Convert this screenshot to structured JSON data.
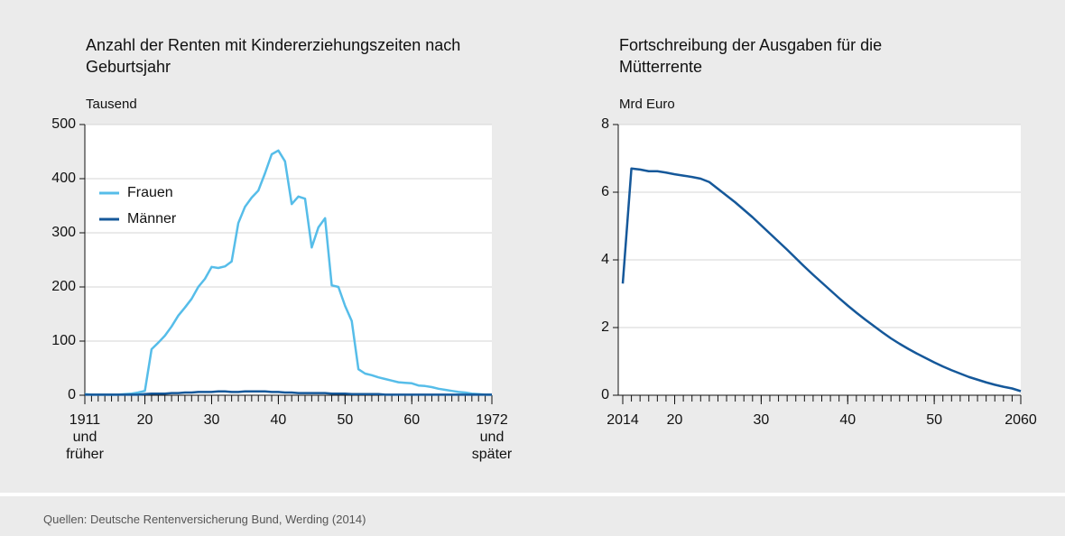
{
  "chart_data": [
    {
      "type": "line",
      "title": "Anzahl der Renten mit Kindererziehungszeiten nach Geburtsjahr",
      "y_label": "Tausend",
      "x": [
        1911,
        1912,
        1913,
        1914,
        1915,
        1916,
        1917,
        1918,
        1919,
        1920,
        1921,
        1922,
        1923,
        1924,
        1925,
        1926,
        1927,
        1928,
        1929,
        1930,
        1931,
        1932,
        1933,
        1934,
        1935,
        1936,
        1937,
        1938,
        1939,
        1940,
        1941,
        1942,
        1943,
        1944,
        1945,
        1946,
        1947,
        1948,
        1949,
        1950,
        1951,
        1952,
        1953,
        1954,
        1955,
        1956,
        1957,
        1958,
        1959,
        1960,
        1961,
        1962,
        1963,
        1964,
        1965,
        1966,
        1967,
        1968,
        1969,
        1970,
        1971,
        1972
      ],
      "series": [
        {
          "name": "Frauen",
          "color": "#56bde9",
          "values": [
            2,
            1,
            1,
            1,
            1,
            1,
            2,
            3,
            5,
            8,
            85,
            97,
            110,
            127,
            147,
            162,
            178,
            200,
            215,
            237,
            235,
            238,
            247,
            318,
            348,
            365,
            378,
            410,
            445,
            452,
            432,
            353,
            367,
            363,
            273,
            310,
            327,
            203,
            200,
            165,
            137,
            48,
            40,
            37,
            33,
            30,
            27,
            24,
            23,
            22,
            18,
            17,
            15,
            12,
            10,
            8,
            6,
            5,
            3,
            2,
            1,
            1
          ]
        },
        {
          "name": "Männer",
          "color": "#15589a",
          "values": [
            1,
            1,
            1,
            1,
            1,
            1,
            1,
            1,
            1,
            2,
            3,
            3,
            3,
            4,
            4,
            5,
            5,
            6,
            6,
            6,
            7,
            7,
            6,
            6,
            7,
            7,
            7,
            7,
            6,
            6,
            5,
            5,
            4,
            4,
            4,
            4,
            4,
            3,
            3,
            3,
            2,
            2,
            2,
            2,
            2,
            1,
            1,
            1,
            1,
            1,
            1,
            1,
            1,
            1,
            1,
            1,
            1,
            1,
            1,
            1,
            1,
            1
          ]
        }
      ],
      "xlim": [
        1911,
        1972
      ],
      "xticks": [
        {
          "value": 1911,
          "label": "1911\nund\nfrüher"
        },
        {
          "value": 1920,
          "label": "20"
        },
        {
          "value": 1930,
          "label": "30"
        },
        {
          "value": 1940,
          "label": "40"
        },
        {
          "value": 1950,
          "label": "50"
        },
        {
          "value": 1960,
          "label": "60"
        },
        {
          "value": 1972,
          "label": "1972\nund\nspäter"
        }
      ],
      "ylim": [
        0,
        500
      ],
      "yticks": [
        0,
        100,
        200,
        300,
        400,
        500
      ],
      "grid": true,
      "legend": "upper left"
    },
    {
      "type": "line",
      "title": "Fortschreibung der Ausgaben für die Mütterrente",
      "y_label": "Mrd Euro",
      "x": [
        2014,
        2015,
        2016,
        2017,
        2018,
        2019,
        2020,
        2021,
        2022,
        2023,
        2024,
        2025,
        2026,
        2027,
        2028,
        2029,
        2030,
        2031,
        2032,
        2033,
        2034,
        2035,
        2036,
        2037,
        2038,
        2039,
        2040,
        2041,
        2042,
        2043,
        2044,
        2045,
        2046,
        2047,
        2048,
        2049,
        2050,
        2051,
        2052,
        2053,
        2054,
        2055,
        2056,
        2057,
        2058,
        2059,
        2060
      ],
      "series": [
        {
          "name": null,
          "color": "#15589a",
          "values": [
            3.3,
            6.7,
            6.67,
            6.62,
            6.62,
            6.58,
            6.53,
            6.49,
            6.45,
            6.4,
            6.3,
            6.1,
            5.9,
            5.7,
            5.48,
            5.26,
            5.02,
            4.78,
            4.54,
            4.3,
            4.05,
            3.8,
            3.56,
            3.33,
            3.1,
            2.87,
            2.65,
            2.44,
            2.24,
            2.05,
            1.86,
            1.68,
            1.52,
            1.37,
            1.23,
            1.1,
            0.97,
            0.85,
            0.74,
            0.64,
            0.54,
            0.46,
            0.38,
            0.31,
            0.25,
            0.2,
            0.12
          ]
        }
      ],
      "xlim": [
        2014,
        2060
      ],
      "xticks": [
        2014,
        {
          "value": 2020,
          "label": "20"
        },
        {
          "value": 2030,
          "label": "30"
        },
        {
          "value": 2040,
          "label": "40"
        },
        {
          "value": 2050,
          "label": "50"
        },
        2060
      ],
      "ylim": [
        0,
        8
      ],
      "yticks": [
        0,
        2,
        4,
        6,
        8
      ],
      "grid": true
    }
  ],
  "source": "Quellen: Deutsche Rentenversicherung Bund, Werding (2014)"
}
